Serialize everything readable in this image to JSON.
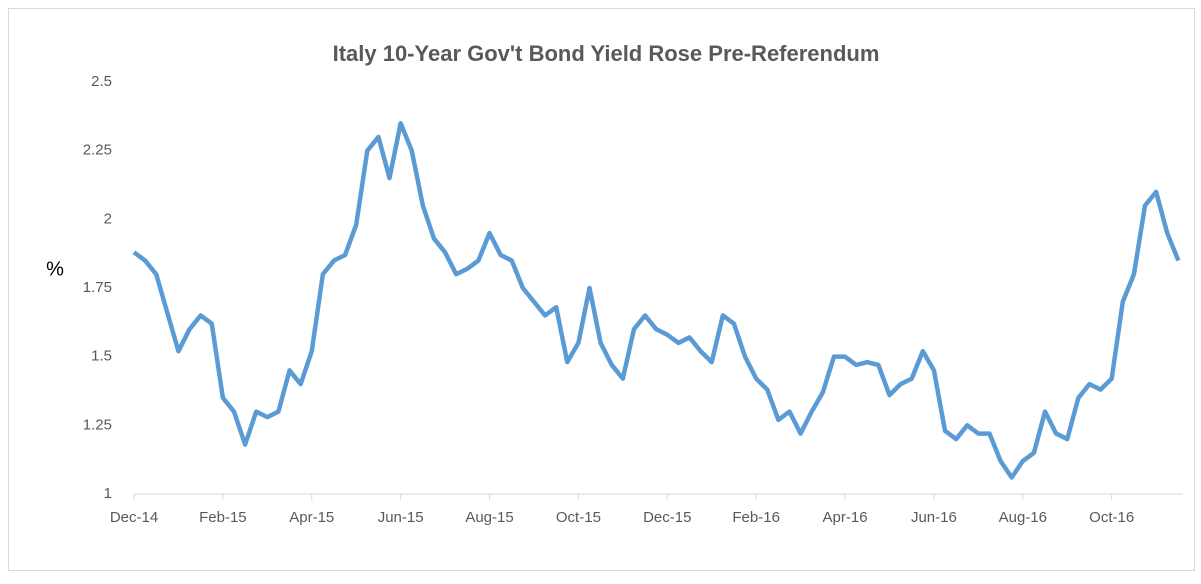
{
  "chart_data": {
    "type": "line",
    "title": "Italy 10-Year Gov't Bond Yield Rose Pre-Referendum",
    "y_label": "%",
    "categories": [
      "Dec-14",
      null,
      null,
      null,
      null,
      null,
      null,
      null,
      "Feb-15",
      null,
      null,
      null,
      null,
      null,
      null,
      null,
      "Apr-15",
      null,
      null,
      null,
      null,
      null,
      null,
      null,
      "Jun-15",
      null,
      null,
      null,
      null,
      null,
      null,
      null,
      "Aug-15",
      null,
      null,
      null,
      null,
      null,
      null,
      null,
      "Oct-15",
      null,
      null,
      null,
      null,
      null,
      null,
      null,
      "Dec-15",
      null,
      null,
      null,
      null,
      null,
      null,
      null,
      "Feb-16",
      null,
      null,
      null,
      null,
      null,
      null,
      null,
      "Apr-16",
      null,
      null,
      null,
      null,
      null,
      null,
      null,
      "Jun-16",
      null,
      null,
      null,
      null,
      null,
      null,
      null,
      "Aug-16",
      null,
      null,
      null,
      null,
      null,
      null,
      null,
      "Oct-16",
      null,
      null,
      null,
      null,
      null,
      null
    ],
    "series": [
      {
        "color": "#5b9bd5",
        "values": [
          1.88,
          1.85,
          1.8,
          1.66,
          1.52,
          1.6,
          1.65,
          1.62,
          1.35,
          1.3,
          1.18,
          1.3,
          1.28,
          1.3,
          1.45,
          1.4,
          1.52,
          1.8,
          1.85,
          1.87,
          1.98,
          2.25,
          2.3,
          2.15,
          2.35,
          2.25,
          2.05,
          1.93,
          1.88,
          1.8,
          1.82,
          1.85,
          1.95,
          1.87,
          1.85,
          1.75,
          1.7,
          1.65,
          1.68,
          1.48,
          1.55,
          1.75,
          1.55,
          1.47,
          1.42,
          1.6,
          1.65,
          1.6,
          1.58,
          1.55,
          1.57,
          1.52,
          1.48,
          1.65,
          1.62,
          1.5,
          1.42,
          1.38,
          1.27,
          1.3,
          1.22,
          1.3,
          1.37,
          1.5,
          1.5,
          1.47,
          1.48,
          1.47,
          1.36,
          1.4,
          1.42,
          1.52,
          1.45,
          1.23,
          1.2,
          1.25,
          1.22,
          1.22,
          1.12,
          1.06,
          1.12,
          1.15,
          1.3,
          1.22,
          1.2,
          1.35,
          1.4,
          1.38,
          1.42,
          1.7,
          1.8,
          2.05,
          2.1,
          1.95,
          1.85
        ]
      }
    ],
    "ylim": [
      1,
      2.5
    ],
    "yticks": [
      1,
      1.25,
      1.5,
      1.75,
      2,
      2.25,
      2.5
    ],
    "grid": false
  }
}
